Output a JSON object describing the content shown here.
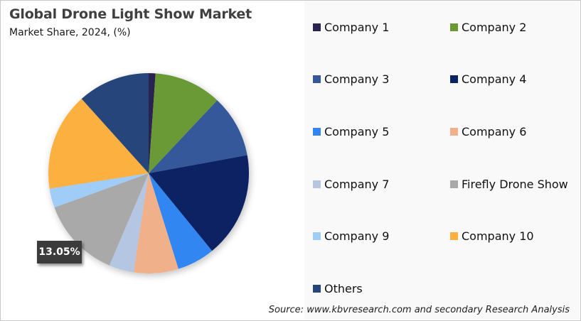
{
  "header": {
    "title": "Global Drone Light Show Market",
    "subtitle": "Market Share, 2024, (%)"
  },
  "highlight_label": "13.05%",
  "legend": [
    {
      "label": "Company 1",
      "color": "#2b2450"
    },
    {
      "label": "Company 2",
      "color": "#6a9a34"
    },
    {
      "label": "Company 3",
      "color": "#34589a"
    },
    {
      "label": "Company 4",
      "color": "#0a2463"
    },
    {
      "label": "Company 5",
      "color": "#3386f2"
    },
    {
      "label": "Company 6",
      "color": "#f0b08a"
    },
    {
      "label": "Company 7",
      "color": "#b4c6e2"
    },
    {
      "label": "Firefly Drone Show",
      "color": "#aaa9a9"
    },
    {
      "label": "Company 9",
      "color": "#9fcdf7"
    },
    {
      "label": "Company 10",
      "color": "#fbb040"
    },
    {
      "label": "Others",
      "color": "#26457a"
    }
  ],
  "source": "Source: www.kbvresearch.com and secondary Research Analysis",
  "chart_data": {
    "type": "pie",
    "title": "Global Drone Light Show Market",
    "subtitle": "Market Share, 2024, (%)",
    "categories": [
      "Company 1",
      "Company 2",
      "Company 3",
      "Company 4",
      "Company 5",
      "Company 6",
      "Company 7",
      "Firefly Drone Show",
      "Company 9",
      "Company 10",
      "Others"
    ],
    "values": [
      1.1,
      10.9,
      10.1,
      17.0,
      6.1,
      7.2,
      4.0,
      13.05,
      3.1,
      15.8,
      11.65
    ],
    "colors": [
      "#2b2450",
      "#6a9a34",
      "#34589a",
      "#0a2463",
      "#3386f2",
      "#f0b08a",
      "#b4c6e2",
      "#aaa9a9",
      "#9fcdf7",
      "#fbb040",
      "#26457a"
    ],
    "start_angle_deg": 0,
    "direction": "clockwise",
    "data_labels": [
      {
        "category": "Firefly Drone Show",
        "text": "13.05%"
      }
    ],
    "legend_position": "right",
    "source": "Source: www.kbvresearch.com and secondary Research Analysis"
  }
}
